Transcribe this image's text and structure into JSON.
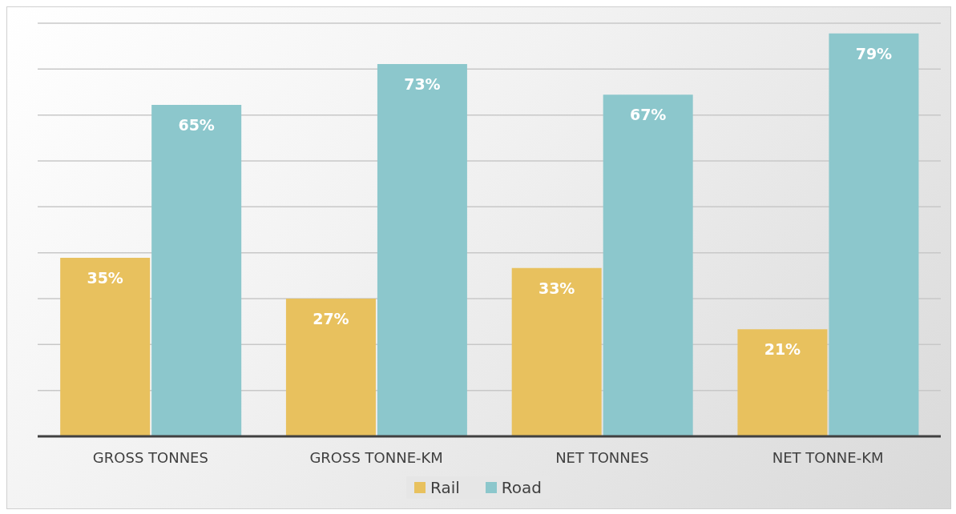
{
  "chart_data": {
    "type": "bar",
    "categories": [
      "GROSS TONNES",
      "GROSS TONNE-KM",
      "NET TONNES",
      "NET TONNE-KM"
    ],
    "series": [
      {
        "name": "Rail",
        "color": "#e8c15e",
        "values": [
          35,
          27,
          33,
          21
        ],
        "value_labels": [
          "35%",
          "27%",
          "33%",
          "21%"
        ]
      },
      {
        "name": "Road",
        "color": "#8cc7cc",
        "values": [
          65,
          73,
          67,
          79
        ],
        "value_labels": [
          "65%",
          "73%",
          "67%",
          "79%"
        ]
      }
    ],
    "grid": "y",
    "legend": "bottom",
    "tick_labels": "x"
  }
}
